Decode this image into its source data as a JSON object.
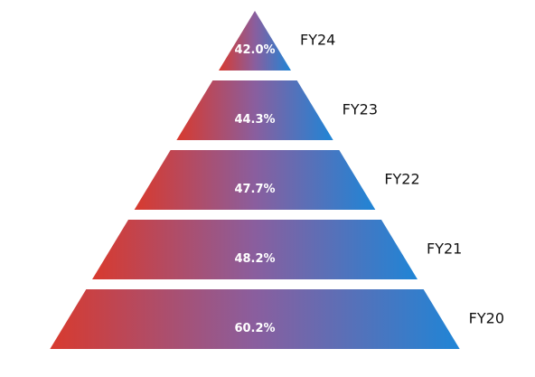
{
  "chart_data": {
    "type": "pyramid",
    "title": "",
    "categories": [
      "FY24",
      "FY23",
      "FY22",
      "FY21",
      "FY20"
    ],
    "values": [
      42.0,
      44.3,
      47.7,
      48.2,
      60.2
    ],
    "value_labels": [
      "42.0%",
      "44.3%",
      "47.7%",
      "48.2%",
      "60.2%"
    ],
    "unit": "%",
    "category_label_position": "right",
    "value_label_position": "center",
    "colors": {
      "gradient_start": "#d83a2e",
      "gradient_mid": "#8a5e9e",
      "gradient_end": "#1f85d6",
      "value_text": "#ffffff",
      "category_text": "#111111"
    }
  }
}
